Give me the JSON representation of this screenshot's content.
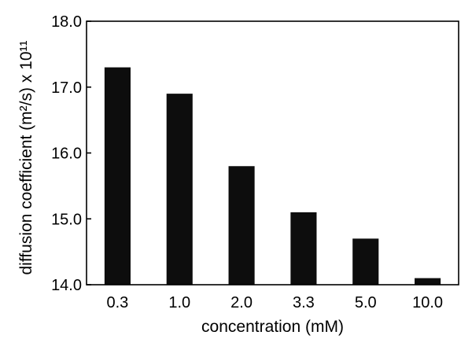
{
  "chart_data": {
    "type": "bar",
    "categories": [
      "0.3",
      "1.0",
      "2.0",
      "3.3",
      "5.0",
      "10.0"
    ],
    "values": [
      17.3,
      16.9,
      15.8,
      15.1,
      14.7,
      14.1
    ],
    "xlabel": "concentration (mM)",
    "ylabel": "diffusion coefficient (m²/s) x 10¹¹",
    "ylim": [
      14.0,
      18.0
    ],
    "yticks": [
      "14.0",
      "15.0",
      "16.0",
      "17.0",
      "18.0"
    ],
    "grid": false,
    "bar_color": "#0d0d0d"
  }
}
